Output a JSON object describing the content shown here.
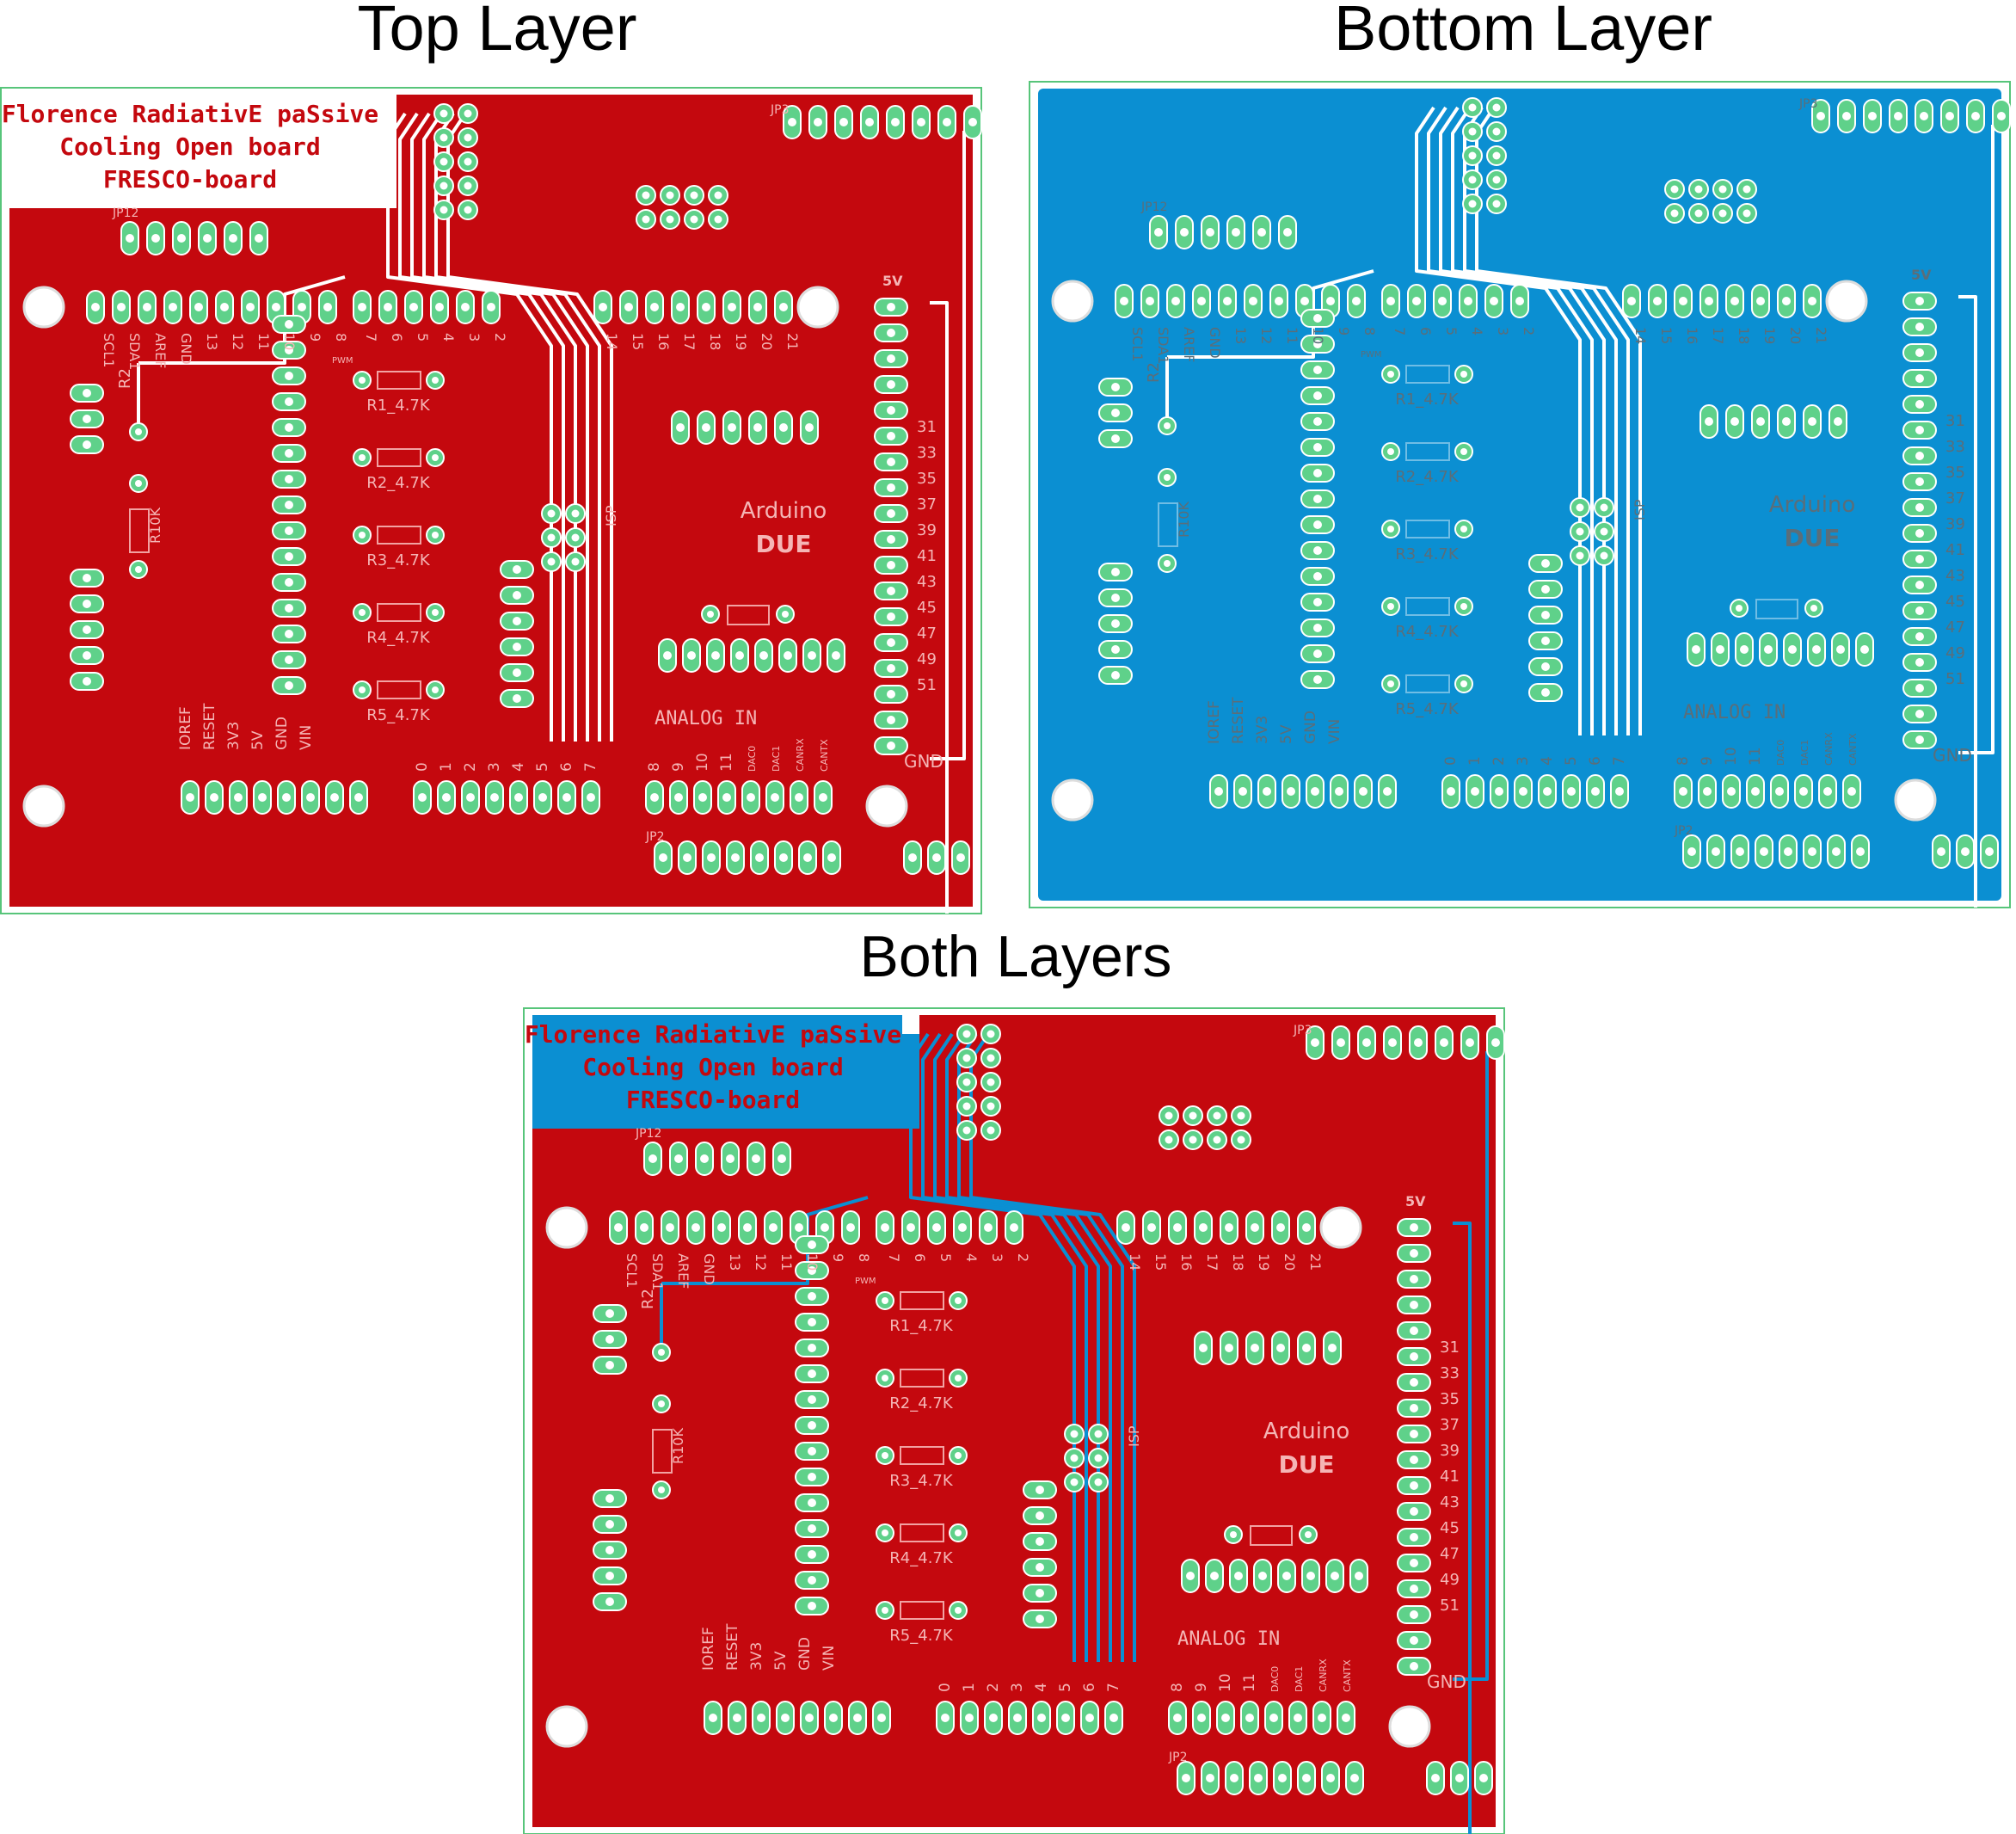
{
  "panels": {
    "top": {
      "heading": "Top Layer"
    },
    "bottom": {
      "heading": "Bottom Layer"
    },
    "both": {
      "heading": "Both Layers"
    }
  },
  "board": {
    "title_lines": [
      "Florence RadiativE paSsive",
      "Cooling Open board",
      "FRESCO-board"
    ],
    "platform": [
      "Arduino",
      "DUE"
    ],
    "analog_in": "ANALOG  IN",
    "labels": {
      "jp12": "JP12",
      "jp3": "JP3",
      "jp2": "JP2",
      "isp": "ISP",
      "pwm": "PWM",
      "r2": "R2",
      "r10k": "R10K",
      "five_v": "5V",
      "gnd": "GND"
    },
    "resistors": [
      "R1_4.7K",
      "R2_4.7K",
      "R3_4.7K",
      "R4_4.7K",
      "R5_4.7K"
    ],
    "left_header_labels": [
      "SCL1",
      "SDA1",
      "AREF",
      "GND",
      "13",
      "12",
      "11",
      "10",
      "9",
      "8"
    ],
    "mid_header_labels": [
      "7",
      "6",
      "5",
      "4",
      "3",
      "2"
    ],
    "comm_header_labels": [
      "14",
      "15",
      "16",
      "17",
      "18",
      "19",
      "20",
      "21"
    ],
    "digital_side_labels": [
      "31",
      "33",
      "35",
      "37",
      "39",
      "41",
      "43",
      "45",
      "47",
      "49",
      "51"
    ],
    "power_header_labels": [
      "IOREF",
      "RESET",
      "3V3",
      "5V",
      "GND",
      "VIN"
    ],
    "analog_header_labels_a": [
      "0",
      "1",
      "2",
      "3",
      "4",
      "5",
      "6",
      "7"
    ],
    "analog_header_labels_b": [
      "8",
      "9",
      "10",
      "11",
      "DAC0",
      "DAC1",
      "CANRX",
      "CANTX"
    ]
  },
  "colors": {
    "top_copper": "#c4080e",
    "bottom_copper": "#0b8fd2",
    "pad": "#5fd18a",
    "outline": "#57c57a",
    "silk_top": "#f2a2a2",
    "silk_bottom": "#6fbde5",
    "hole": "#ffffff",
    "title_text": "#c4080e"
  }
}
